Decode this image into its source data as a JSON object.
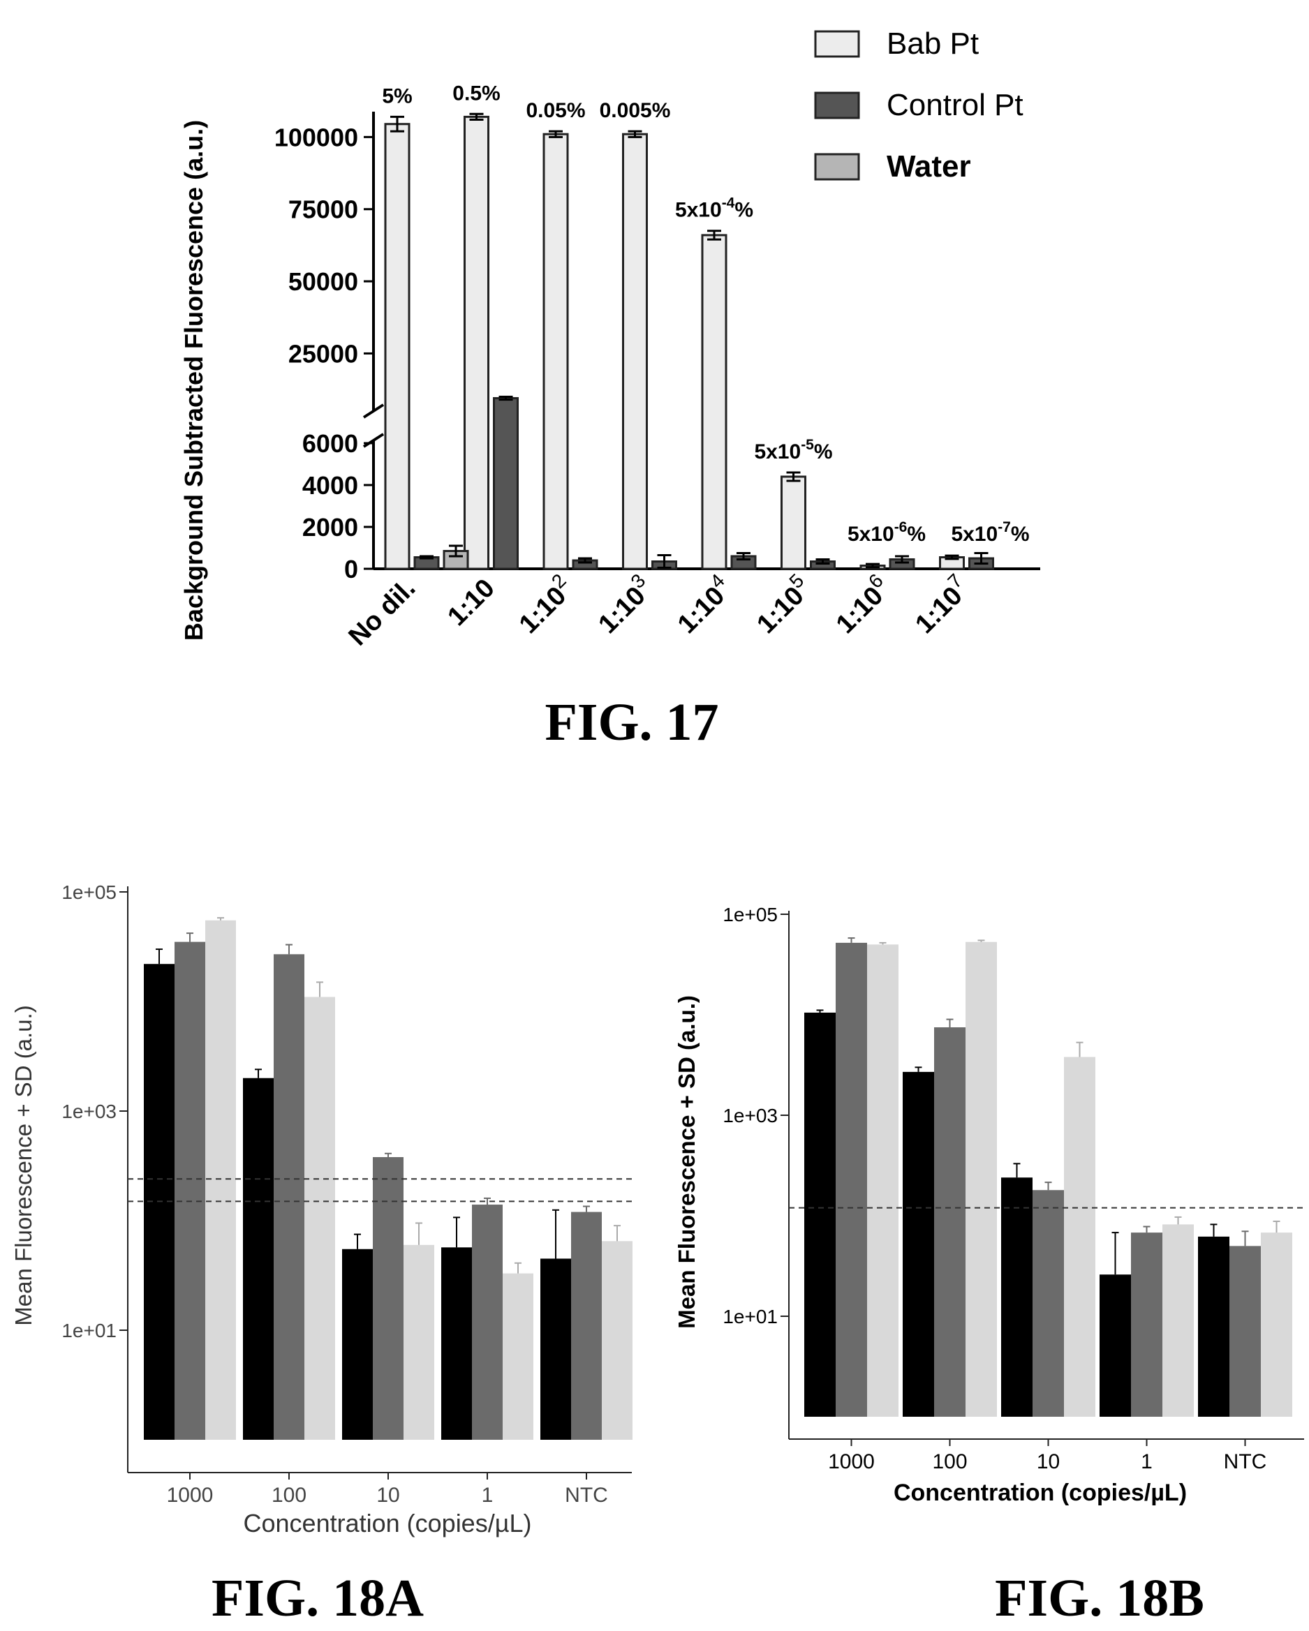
{
  "figures": {
    "fig17": "FIG. 17",
    "fig18a": "FIG. 18A",
    "fig18b": "FIG. 18B"
  },
  "colors": {
    "bab_fill": "#ececec",
    "control_fill": "#555555",
    "water_fill": "#b5b5b5",
    "black": "#000000",
    "dark_gray": "#6b6b6b",
    "light_gray": "#d9d9d9"
  },
  "chart_data": [
    {
      "id": "fig17",
      "type": "bar",
      "title": "",
      "xlabel": "",
      "ylabel": "Background Subtracted Fluorescence  (a.u.)",
      "categories": [
        "No dil.",
        "1:10",
        "1:10^2",
        "1:10^3",
        "1:10^4",
        "1:10^5",
        "1:10^6",
        "1:10^7"
      ],
      "category_labels": [
        {
          "base": "No dil.",
          "exp": ""
        },
        {
          "base": "1:10",
          "exp": ""
        },
        {
          "base": "1:10",
          "exp": "2"
        },
        {
          "base": "1:10",
          "exp": "3"
        },
        {
          "base": "1:10",
          "exp": "4"
        },
        {
          "base": "1:10",
          "exp": "5"
        },
        {
          "base": "1:10",
          "exp": "6"
        },
        {
          "base": "1:10",
          "exp": "7"
        }
      ],
      "axis_break": {
        "lower_range": [
          0,
          6000
        ],
        "upper_range": [
          6000,
          110000
        ]
      },
      "yticks_lower": [
        "0",
        "2000",
        "4000",
        "6000"
      ],
      "yticks_upper": [
        "25000",
        "50000",
        "75000",
        "100000"
      ],
      "legend": {
        "position": "top-right",
        "entries": [
          "Bab Pt",
          "Control Pt",
          "Water"
        ]
      },
      "series": [
        {
          "name": "Bab Pt",
          "values": [
            104500,
            107000,
            101000,
            101000,
            66000,
            4400,
            150,
            550
          ],
          "errors": [
            2500,
            1000,
            1000,
            1000,
            1500,
            200,
            80,
            80
          ]
        },
        {
          "name": "Control Pt",
          "values": [
            550,
            9500,
            400,
            350,
            600,
            350,
            450,
            500
          ],
          "errors": [
            50,
            500,
            100,
            300,
            150,
            100,
            150,
            250
          ]
        },
        {
          "name": "Water",
          "values": [
            850,
            null,
            null,
            null,
            null,
            null,
            null,
            null
          ],
          "errors": [
            250,
            null,
            null,
            null,
            null,
            null,
            null,
            null
          ]
        }
      ],
      "annotations": [
        {
          "category": 0,
          "base": "5%",
          "exp": "",
          "tail": ""
        },
        {
          "category": 1,
          "base": "0.5%",
          "exp": "",
          "tail": ""
        },
        {
          "category": 2,
          "base": "0.05%",
          "exp": "",
          "tail": ""
        },
        {
          "category": 3,
          "base": "0.005%",
          "exp": "",
          "tail": ""
        },
        {
          "category": 4,
          "base": "5x10",
          "exp": "-4",
          "tail": "%"
        },
        {
          "category": 5,
          "base": "5x10",
          "exp": "-5",
          "tail": "%"
        },
        {
          "category": 6,
          "base": "5x10",
          "exp": "-6",
          "tail": "%"
        },
        {
          "category": 7,
          "base": "5x10",
          "exp": "-7",
          "tail": "%"
        }
      ]
    },
    {
      "id": "fig18a",
      "type": "bar",
      "title": "",
      "xlabel": "Concentration (copies/µL)",
      "ylabel": "Mean Fluorescence + SD (a.u.)",
      "yscale": "log",
      "ylim": [
        1,
        100000
      ],
      "yticks": [
        {
          "value": 100000,
          "label": "1e+05"
        },
        {
          "value": 1000,
          "label": "1e+03"
        },
        {
          "value": 10,
          "label": "1e+01"
        }
      ],
      "categories": [
        "1000",
        "100",
        "10",
        "1",
        "NTC"
      ],
      "series": [
        {
          "values": [
            22000,
            2000,
            55,
            57,
            45
          ],
          "errors": [
            8000,
            400,
            20,
            50,
            80
          ]
        },
        {
          "values": [
            35000,
            27000,
            380,
            140,
            120
          ],
          "errors": [
            7000,
            6000,
            30,
            20,
            15
          ]
        },
        {
          "values": [
            55000,
            11000,
            60,
            33,
            65
          ],
          "errors": [
            3000,
            4000,
            35,
            8,
            25
          ]
        }
      ],
      "threshold_lines": [
        240,
        150
      ]
    },
    {
      "id": "fig18b",
      "type": "bar",
      "title": "",
      "xlabel": "Concentration (copies/µL)",
      "ylabel": "Mean Fluorescence + SD (a.u.)",
      "yscale": "log",
      "ylim": [
        1,
        100000
      ],
      "yticks": [
        {
          "value": 100000,
          "label": "1e+05"
        },
        {
          "value": 1000,
          "label": "1e+03"
        },
        {
          "value": 10,
          "label": "1e+01"
        }
      ],
      "categories": [
        "1000",
        "100",
        "10",
        "1",
        "NTC"
      ],
      "series": [
        {
          "values": [
            10500,
            2700,
            240,
            26,
            62
          ],
          "errors": [
            600,
            300,
            90,
            42,
            20
          ]
        },
        {
          "values": [
            52000,
            7500,
            180,
            68,
            50
          ],
          "errors": [
            6000,
            1500,
            35,
            10,
            20
          ]
        },
        {
          "values": [
            50000,
            53000,
            3800,
            82,
            68
          ],
          "errors": [
            2000,
            2000,
            1500,
            15,
            20
          ]
        }
      ],
      "threshold_lines": [
        120
      ]
    }
  ]
}
